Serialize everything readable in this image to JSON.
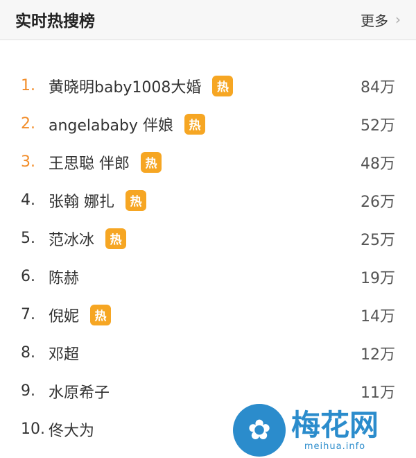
{
  "header": {
    "title": "实时热搜榜",
    "more_label": "更多",
    "chevron": "chevron-right-icon"
  },
  "hot_label": "热",
  "colors": {
    "top_rank": "#f28c28",
    "hot_badge": "#f6a623",
    "watermark": "#2b8ccc"
  },
  "items": [
    {
      "rank": "1.",
      "name": "黄晓明baby1008大婚",
      "hot": true,
      "count": "84万"
    },
    {
      "rank": "2.",
      "name": "angelababy 伴娘",
      "hot": true,
      "count": "52万"
    },
    {
      "rank": "3.",
      "name": "王思聪 伴郎",
      "hot": true,
      "count": "48万"
    },
    {
      "rank": "4.",
      "name": "张翰 娜扎",
      "hot": true,
      "count": "26万"
    },
    {
      "rank": "5.",
      "name": "范冰冰",
      "hot": true,
      "count": "25万"
    },
    {
      "rank": "6.",
      "name": "陈赫",
      "hot": false,
      "count": "19万"
    },
    {
      "rank": "7.",
      "name": "倪妮",
      "hot": true,
      "count": "14万"
    },
    {
      "rank": "8.",
      "name": "邓超",
      "hot": false,
      "count": "12万"
    },
    {
      "rank": "9.",
      "name": "水原希子",
      "hot": false,
      "count": "11万"
    },
    {
      "rank": "10.",
      "name": "佟大为",
      "hot": false,
      "count": ""
    }
  ],
  "watermark": {
    "cn": "梅花网",
    "en": "meihua.info"
  }
}
